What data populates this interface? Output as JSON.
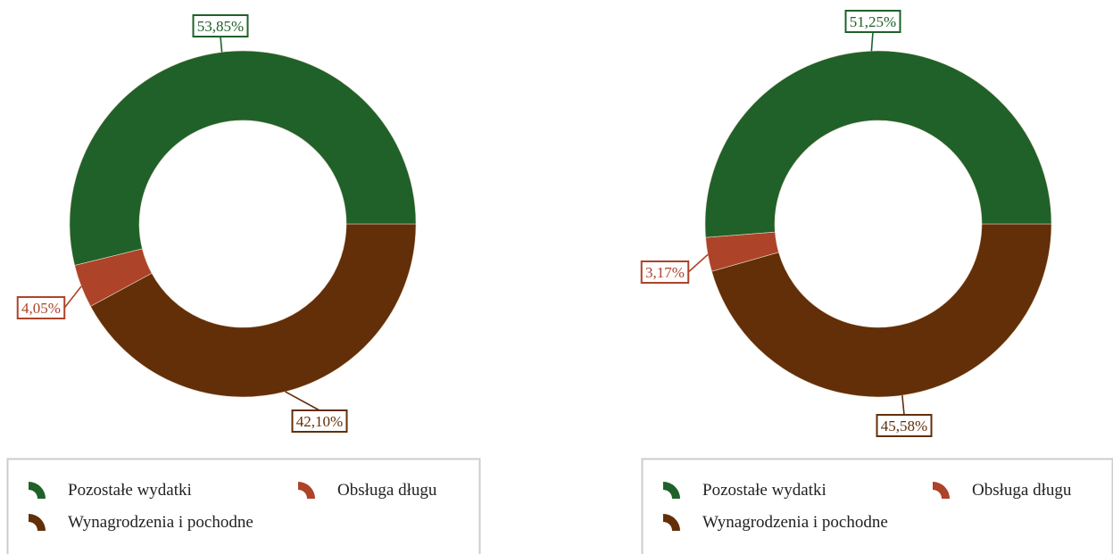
{
  "colors": {
    "pozostale": "#1f6129",
    "obsluga": "#ad4329",
    "wynagrodzenia": "#622f08",
    "legend_border": "#cccccc"
  },
  "chart_data": [
    {
      "type": "pie",
      "donut": true,
      "start_angle_deg": 90,
      "direction": "clockwise",
      "slices": [
        {
          "label": "Wynagrodzenia i pochodne",
          "value": 42.1,
          "display": "42,10%",
          "color": "#622f08"
        },
        {
          "label": "Obsługa długu",
          "value": 4.05,
          "display": "4,05%",
          "color": "#ad4329"
        },
        {
          "label": "Pozostałe wydatki",
          "value": 53.85,
          "display": "53,85%",
          "color": "#1f6129"
        }
      ],
      "legend": [
        "Pozostałe wydatki",
        "Obsługa długu",
        "Wynagrodzenia i pochodne"
      ],
      "legend_position": "bottom"
    },
    {
      "type": "pie",
      "donut": true,
      "start_angle_deg": 90,
      "direction": "clockwise",
      "slices": [
        {
          "label": "Wynagrodzenia i pochodne",
          "value": 45.58,
          "display": "45,58%",
          "color": "#622f08"
        },
        {
          "label": "Obsługa długu",
          "value": 3.17,
          "display": "3,17%",
          "color": "#ad4329"
        },
        {
          "label": "Pozostałe wydatki",
          "value": 51.25,
          "display": "51,25%",
          "color": "#1f6129"
        }
      ],
      "legend": [
        "Pozostałe wydatki",
        "Obsługa długu",
        "Wynagrodzenia i pochodne"
      ],
      "legend_position": "bottom"
    }
  ]
}
